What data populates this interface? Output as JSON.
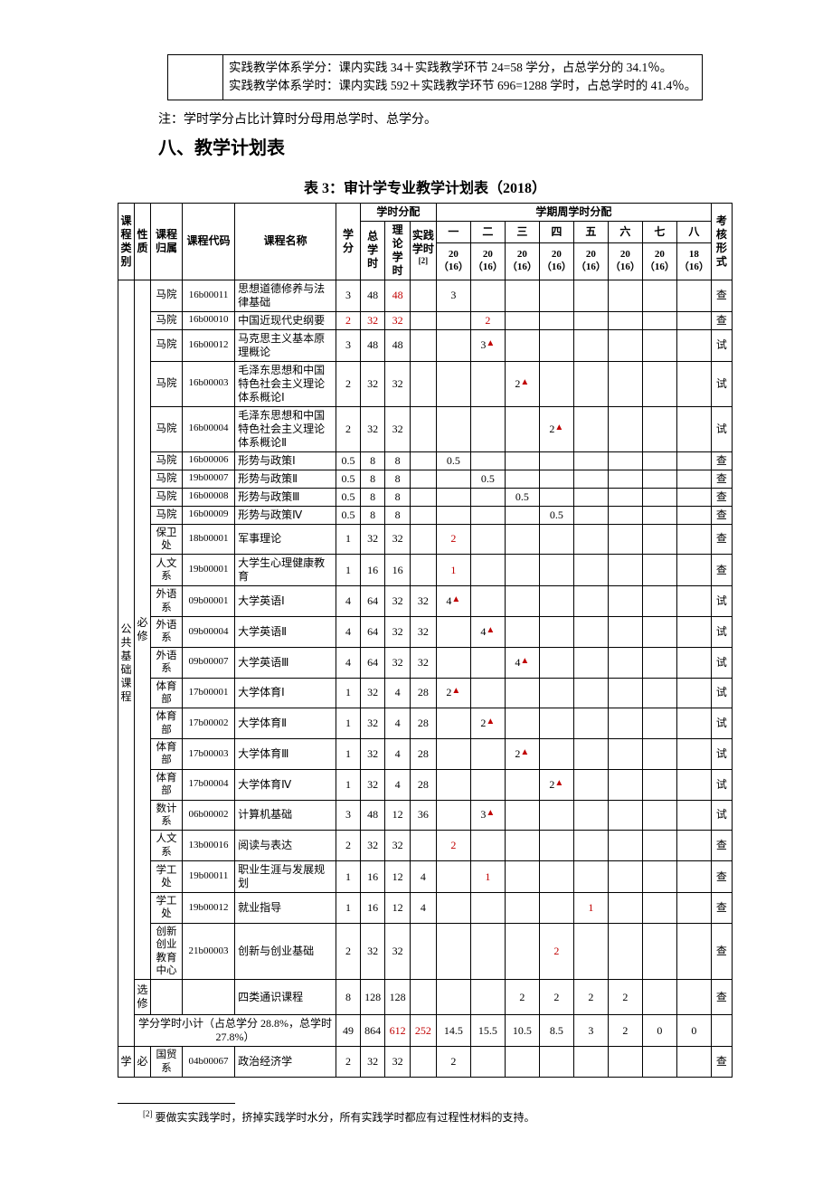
{
  "topbox": {
    "line1": "实践教学体系学分：课内实践 34＋实践教学环节 24=58 学分，占总学分的 34.1％。",
    "line2": "实践教学体系学时：课内实践 592＋实践教学环节 696=1288 学时，占总学时的 41.4％。"
  },
  "note": "注：学时学分占比计算时分母用总学时、总学分。",
  "section_heading": "八、教学计划表",
  "table_title": "表 3：审计学专业教学计划表（2018）",
  "headers": {
    "category": "课程类别",
    "nature": "性质",
    "dept": "课程归属",
    "code": "课程代码",
    "name": "课程名称",
    "credit": "学分",
    "hours_group": "学时分配",
    "sem_group": "学期周学时分配",
    "total_hours": "总学时",
    "theory_hours": "理论学时",
    "practice_hours": "实践学时",
    "practice_fn": "[2]",
    "exam": "考核形式",
    "sem_nums": [
      "一",
      "二",
      "三",
      "四",
      "五",
      "六",
      "七",
      "八"
    ],
    "sem_weeks": [
      "20（16）",
      "20（16）",
      "20（16）",
      "20（16）",
      "20（16）",
      "20（16）",
      "20（16）",
      "18（16）"
    ]
  },
  "category1": "公共基础课程",
  "nature_req": "必修",
  "nature_opt": "选修",
  "rows": [
    {
      "dept": "马院",
      "code": "16b00011",
      "name": "思想道德修养与法律基础",
      "credit": "3",
      "total": "48",
      "theory": "48",
      "theory_red": true,
      "practice": "",
      "s": [
        "3",
        "",
        "",
        "",
        "",
        "",
        "",
        ""
      ],
      "exam": "查"
    },
    {
      "dept": "马院",
      "code": "16b00010",
      "name": "中国近现代史纲要",
      "credit": "2",
      "credit_red": true,
      "total": "32",
      "total_red": true,
      "theory": "32",
      "theory_red": true,
      "practice": "",
      "s": [
        "",
        "2",
        "",
        "",
        "",
        "",
        "",
        ""
      ],
      "s_red": [
        false,
        true
      ],
      "exam": "查"
    },
    {
      "dept": "马院",
      "code": "16b00012",
      "name": "马克思主义基本原理概论",
      "credit": "3",
      "total": "48",
      "theory": "48",
      "practice": "",
      "s": [
        "",
        "3▲",
        "",
        "",
        "",
        "",
        "",
        ""
      ],
      "tri": [
        0,
        1
      ],
      "exam": "试"
    },
    {
      "dept": "马院",
      "code": "16b00003",
      "name": "毛泽东思想和中国特色社会主义理论体系概论Ⅰ",
      "credit": "2",
      "total": "32",
      "theory": "32",
      "practice": "",
      "s": [
        "",
        "",
        "2▲",
        "",
        "",
        "",
        "",
        ""
      ],
      "tri": [
        0,
        0,
        1
      ],
      "exam": "试"
    },
    {
      "dept": "马院",
      "code": "16b00004",
      "name": "毛泽东思想和中国特色社会主义理论体系概论Ⅱ",
      "credit": "2",
      "total": "32",
      "theory": "32",
      "practice": "",
      "s": [
        "",
        "",
        "",
        "2▲",
        "",
        "",
        "",
        ""
      ],
      "tri": [
        0,
        0,
        0,
        1
      ],
      "exam": "试"
    },
    {
      "dept": "马院",
      "code": "16b00006",
      "name": "形势与政策Ⅰ",
      "credit": "0.5",
      "total": "8",
      "theory": "8",
      "practice": "",
      "s": [
        "0.5",
        "",
        "",
        "",
        "",
        "",
        "",
        ""
      ],
      "exam": "查"
    },
    {
      "dept": "马院",
      "code": "19b00007",
      "name": "形势与政策Ⅱ",
      "credit": "0.5",
      "total": "8",
      "theory": "8",
      "practice": "",
      "s": [
        "",
        "0.5",
        "",
        "",
        "",
        "",
        "",
        ""
      ],
      "exam": "查"
    },
    {
      "dept": "马院",
      "code": "16b00008",
      "name": "形势与政策Ⅲ",
      "credit": "0.5",
      "total": "8",
      "theory": "8",
      "practice": "",
      "s": [
        "",
        "",
        "0.5",
        "",
        "",
        "",
        "",
        ""
      ],
      "exam": "查"
    },
    {
      "dept": "马院",
      "code": "16b00009",
      "name": "形势与政策Ⅳ",
      "credit": "0.5",
      "total": "8",
      "theory": "8",
      "practice": "",
      "s": [
        "",
        "",
        "",
        "0.5",
        "",
        "",
        "",
        ""
      ],
      "exam": "查"
    },
    {
      "dept": "保卫处",
      "code": "18b00001",
      "name": "军事理论",
      "credit": "1",
      "total": "32",
      "theory": "32",
      "practice": "",
      "s": [
        "2",
        "",
        "",
        "",
        "",
        "",
        "",
        ""
      ],
      "s_red": [
        true
      ],
      "exam": "查"
    },
    {
      "dept": "人文系",
      "code": "19b00001",
      "name": "大学生心理健康教育",
      "credit": "1",
      "total": "16",
      "theory": "16",
      "practice": "",
      "s": [
        "1",
        "",
        "",
        "",
        "",
        "",
        "",
        ""
      ],
      "s_red": [
        true
      ],
      "exam": "查"
    },
    {
      "dept": "外语系",
      "code": "09b00001",
      "name": "大学英语Ⅰ",
      "credit": "4",
      "total": "64",
      "theory": "32",
      "practice": "32",
      "s": [
        "4▲",
        "",
        "",
        "",
        "",
        "",
        "",
        ""
      ],
      "tri": [
        1
      ],
      "exam": "试"
    },
    {
      "dept": "外语系",
      "code": "09b00004",
      "name": "大学英语Ⅱ",
      "credit": "4",
      "total": "64",
      "theory": "32",
      "practice": "32",
      "s": [
        "",
        "4▲",
        "",
        "",
        "",
        "",
        "",
        ""
      ],
      "tri": [
        0,
        1
      ],
      "exam": "试"
    },
    {
      "dept": "外语系",
      "code": "09b00007",
      "name": "大学英语Ⅲ",
      "credit": "4",
      "total": "64",
      "theory": "32",
      "practice": "32",
      "s": [
        "",
        "",
        "4▲",
        "",
        "",
        "",
        "",
        ""
      ],
      "tri": [
        0,
        0,
        1
      ],
      "exam": "试"
    },
    {
      "dept": "体育部",
      "code": "17b00001",
      "name": "大学体育Ⅰ",
      "credit": "1",
      "total": "32",
      "theory": "4",
      "practice": "28",
      "s": [
        "2▲",
        "",
        "",
        "",
        "",
        "",
        "",
        ""
      ],
      "tri": [
        1
      ],
      "exam": "试"
    },
    {
      "dept": "体育部",
      "code": "17b00002",
      "name": "大学体育Ⅱ",
      "credit": "1",
      "total": "32",
      "theory": "4",
      "practice": "28",
      "s": [
        "",
        "2▲",
        "",
        "",
        "",
        "",
        "",
        ""
      ],
      "tri": [
        0,
        1
      ],
      "exam": "试"
    },
    {
      "dept": "体育部",
      "code": "17b00003",
      "name": "大学体育Ⅲ",
      "credit": "1",
      "total": "32",
      "theory": "4",
      "practice": "28",
      "s": [
        "",
        "",
        "2▲",
        "",
        "",
        "",
        "",
        ""
      ],
      "tri": [
        0,
        0,
        1
      ],
      "exam": "试"
    },
    {
      "dept": "体育部",
      "code": "17b00004",
      "name": "大学体育Ⅳ",
      "credit": "1",
      "total": "32",
      "theory": "4",
      "practice": "28",
      "s": [
        "",
        "",
        "",
        "2▲",
        "",
        "",
        "",
        ""
      ],
      "tri": [
        0,
        0,
        0,
        1
      ],
      "exam": "试"
    },
    {
      "dept": "数计系",
      "code": "06b00002",
      "name": "计算机基础",
      "credit": "3",
      "total": "48",
      "theory": "12",
      "practice": "36",
      "s": [
        "",
        "3▲",
        "",
        "",
        "",
        "",
        "",
        ""
      ],
      "tri": [
        0,
        1
      ],
      "exam": "试"
    },
    {
      "dept": "人文系",
      "code": "13b00016",
      "name": "阅读与表达",
      "credit": "2",
      "total": "32",
      "theory": "32",
      "practice": "",
      "s": [
        "2",
        "",
        "",
        "",
        "",
        "",
        "",
        ""
      ],
      "s_red": [
        true
      ],
      "exam": "查"
    },
    {
      "dept": "学工处",
      "code": "19b00011",
      "name": "职业生涯与发展规划",
      "credit": "1",
      "total": "16",
      "theory": "12",
      "practice": "4",
      "s": [
        "",
        "1",
        "",
        "",
        "",
        "",
        "",
        ""
      ],
      "s_red": [
        false,
        true
      ],
      "exam": "查"
    },
    {
      "dept": "学工处",
      "code": "19b00012",
      "name": "就业指导",
      "credit": "1",
      "total": "16",
      "theory": "12",
      "practice": "4",
      "s": [
        "",
        "",
        "",
        "",
        "1",
        "",
        "",
        ""
      ],
      "s_red": [
        false,
        false,
        false,
        false,
        true
      ],
      "exam": "查"
    },
    {
      "dept": "创新创业教育中心",
      "code": "21b00003",
      "name": "创新与创业基础",
      "credit": "2",
      "total": "32",
      "theory": "32",
      "practice": "",
      "s": [
        "",
        "",
        "",
        "2",
        "",
        "",
        "",
        ""
      ],
      "s_red": [
        false,
        false,
        false,
        true
      ],
      "exam": "查"
    }
  ],
  "opt_row": {
    "dept": "",
    "code": "",
    "name": "四类通识课程",
    "credit": "8",
    "total": "128",
    "theory": "128",
    "practice": "",
    "s": [
      "",
      "",
      "2",
      "2",
      "2",
      "2",
      "",
      ""
    ],
    "exam": "查"
  },
  "subtotal": {
    "label": "学分学时小计（占总学分 28.8%，总学时 27.8%）",
    "credit": "49",
    "total": "864",
    "theory": "612",
    "theory_red": true,
    "practice": "252",
    "practice_red": true,
    "s": [
      "14.5",
      "15.5",
      "10.5",
      "8.5",
      "3",
      "2",
      "0",
      "0"
    ]
  },
  "bottom_row": {
    "cat": "学",
    "nat": "必",
    "dept": "国贸系",
    "code": "04b00067",
    "name": "政治经济学",
    "credit": "2",
    "total": "32",
    "theory": "32",
    "practice": "",
    "s": [
      "2",
      "",
      "",
      "",
      "",
      "",
      "",
      ""
    ],
    "exam": "查"
  },
  "footnote": "要做实实践学时，挤掉实践学时水分，所有实践学时都应有过程性材料的支持。",
  "footnote_marker": "[2]"
}
